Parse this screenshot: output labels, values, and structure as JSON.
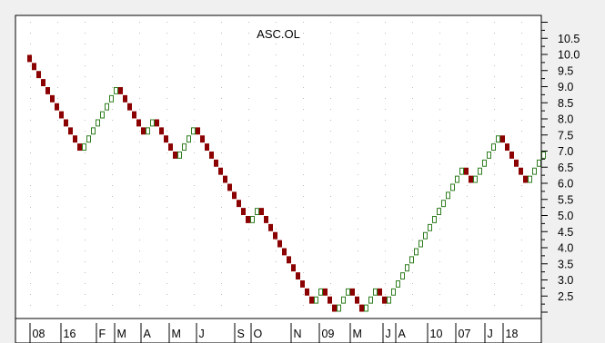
{
  "chart_data": {
    "type": "renko",
    "title": "ASC.OL",
    "box_size": 0.25,
    "ylim": [
      2.0,
      11.0
    ],
    "y_ticks": [
      "2.5",
      "3.0",
      "3.5",
      "4.0",
      "4.5",
      "5.0",
      "5.5",
      "6.0",
      "6.5",
      "7.0",
      "7.5",
      "8.0",
      "8.5",
      "9.0",
      "9.5",
      "10.0",
      "10.5"
    ],
    "x_labels": [
      "08",
      "16",
      "F",
      "M",
      "A",
      "M",
      "J",
      "S",
      "O",
      "N",
      "09",
      "M",
      "J",
      "A",
      "10",
      "07",
      "J",
      "18"
    ],
    "start_value": 10.0,
    "moves": [
      -12,
      8,
      -6,
      2,
      -5,
      4,
      -12,
      2,
      -12,
      2,
      -3,
      3,
      -3,
      3,
      -2,
      17,
      -2,
      6,
      -6,
      4
    ],
    "colors": {
      "up": "#2e7d1e",
      "down": "#8b0000",
      "background": "#ffffff",
      "frame": "#f0f0f0"
    },
    "grid": false
  }
}
